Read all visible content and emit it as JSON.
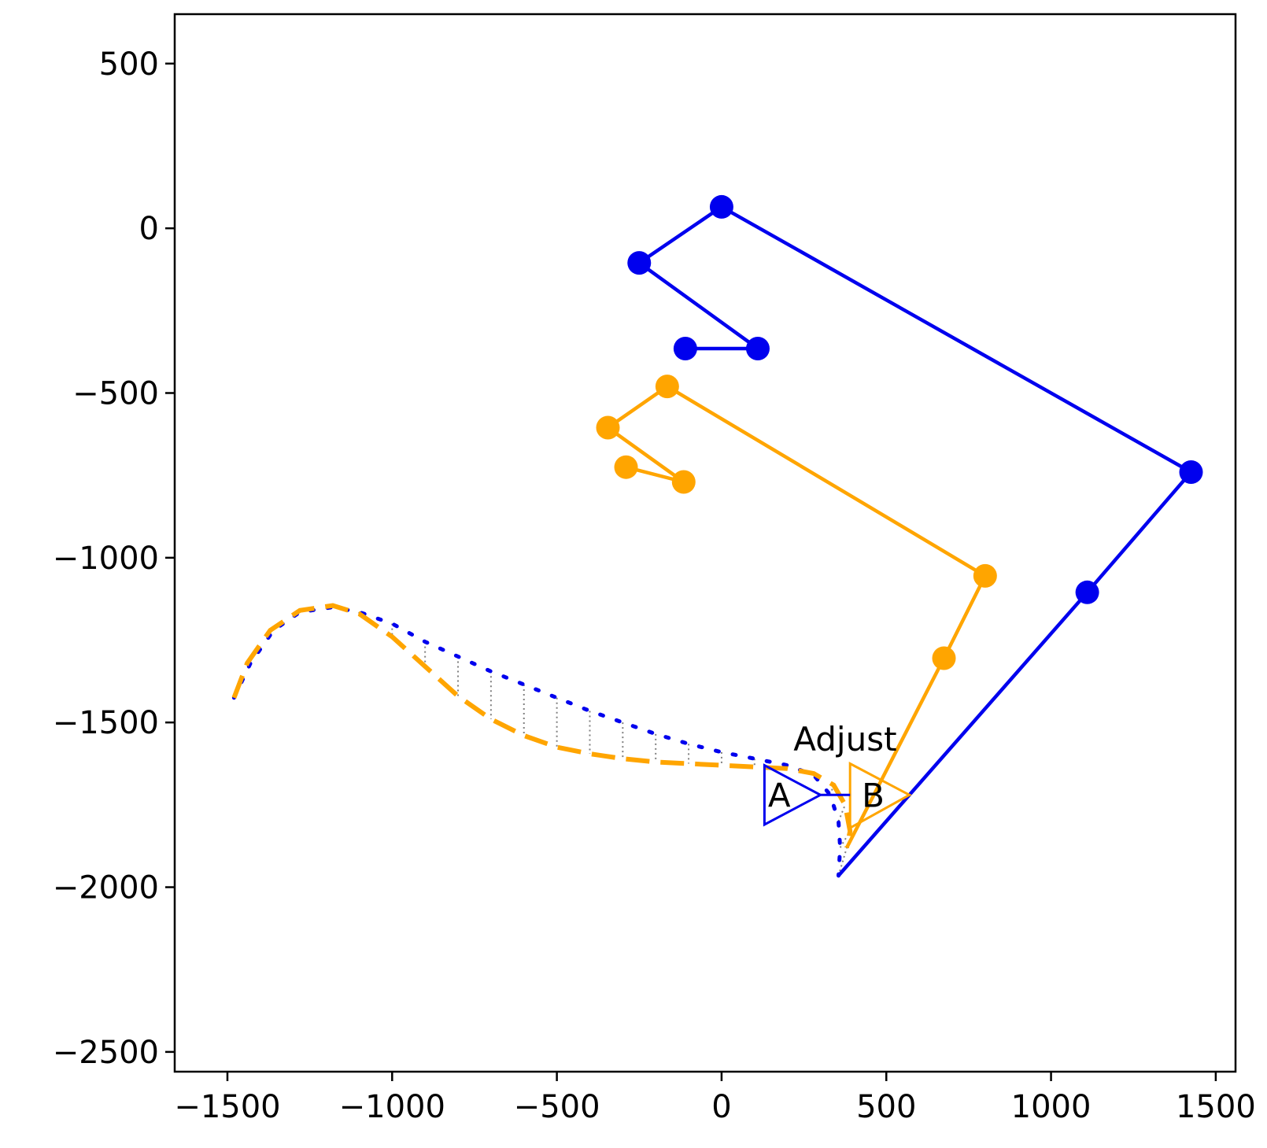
{
  "chart_data": {
    "type": "line",
    "title": "",
    "xlabel": "",
    "ylabel": "",
    "xlim": [
      -1660,
      1560
    ],
    "ylim": [
      -2560,
      650
    ],
    "xticks": [
      -1500,
      -1000,
      -500,
      0,
      500,
      1000,
      1500
    ],
    "xtick_labels": [
      "−1500",
      "−1000",
      "−500",
      "0",
      "500",
      "1000",
      "1500"
    ],
    "yticks": [
      500,
      0,
      -500,
      -1000,
      -1500,
      -2000,
      -2500
    ],
    "ytick_labels": [
      "500",
      "0",
      "−500",
      "−1000",
      "−1500",
      "−2000",
      "−2500"
    ],
    "grid": false,
    "colors": {
      "blue": "#0000ee",
      "orange": "#ffa500",
      "gray": "#808080"
    },
    "series": [
      {
        "color": "#0000ee",
        "style": "solid-markers",
        "points": [
          [
            -110,
            -365
          ],
          [
            110,
            -365
          ],
          [
            -250,
            -105
          ],
          [
            0,
            65
          ],
          [
            1425,
            -740
          ],
          [
            1110,
            -1105
          ],
          [
            355,
            -1965
          ]
        ]
      },
      {
        "color": "#ffa500",
        "style": "solid-markers",
        "points": [
          [
            -290,
            -725
          ],
          [
            -115,
            -770
          ],
          [
            -345,
            -605
          ],
          [
            -165,
            -480
          ],
          [
            800,
            -1055
          ],
          [
            675,
            -1305
          ],
          [
            380,
            -1880
          ]
        ]
      },
      {
        "color": "#0000ee",
        "style": "dotted",
        "points": [
          [
            -1480,
            -1425
          ],
          [
            -1430,
            -1320
          ],
          [
            -1360,
            -1220
          ],
          [
            -1280,
            -1165
          ],
          [
            -1180,
            -1150
          ],
          [
            -1100,
            -1165
          ],
          [
            -1000,
            -1200
          ],
          [
            -900,
            -1255
          ],
          [
            -800,
            -1300
          ],
          [
            -700,
            -1345
          ],
          [
            -600,
            -1385
          ],
          [
            -500,
            -1425
          ],
          [
            -400,
            -1465
          ],
          [
            -300,
            -1500
          ],
          [
            -200,
            -1535
          ],
          [
            -100,
            -1565
          ],
          [
            0,
            -1590
          ],
          [
            100,
            -1610
          ],
          [
            200,
            -1630
          ],
          [
            280,
            -1660
          ],
          [
            330,
            -1720
          ],
          [
            355,
            -1800
          ],
          [
            360,
            -1880
          ],
          [
            355,
            -1965
          ]
        ]
      },
      {
        "color": "#ffa500",
        "style": "dashed",
        "points": [
          [
            -1480,
            -1425
          ],
          [
            -1440,
            -1320
          ],
          [
            -1370,
            -1220
          ],
          [
            -1280,
            -1160
          ],
          [
            -1180,
            -1145
          ],
          [
            -1100,
            -1170
          ],
          [
            -1000,
            -1240
          ],
          [
            -900,
            -1330
          ],
          [
            -800,
            -1420
          ],
          [
            -700,
            -1490
          ],
          [
            -600,
            -1540
          ],
          [
            -500,
            -1575
          ],
          [
            -400,
            -1595
          ],
          [
            -300,
            -1610
          ],
          [
            -200,
            -1620
          ],
          [
            -100,
            -1625
          ],
          [
            0,
            -1630
          ],
          [
            100,
            -1635
          ],
          [
            200,
            -1640
          ],
          [
            280,
            -1655
          ],
          [
            340,
            -1690
          ],
          [
            375,
            -1750
          ],
          [
            390,
            -1830
          ],
          [
            380,
            -1880
          ]
        ]
      }
    ],
    "connectors": {
      "color": "#808080",
      "style": "dotted",
      "pairs_from": "dotted-blue",
      "pairs_to": "dashed-orange",
      "note": "dotted gray lines join corresponding points of the two curves"
    },
    "annotations": [
      {
        "text": "A",
        "x": 175,
        "y": -1720
      },
      {
        "text": "B",
        "x": 460,
        "y": -1720
      },
      {
        "text": "Adjust",
        "x": 375,
        "y": -1550
      }
    ],
    "markers_triangle": [
      {
        "label": "A",
        "color": "#0000ee",
        "tip": [
          300,
          -1720
        ],
        "base_top": [
          130,
          -1630
        ],
        "base_bottom": [
          130,
          -1810
        ]
      },
      {
        "label": "B",
        "color": "#ffa500",
        "tip": [
          570,
          -1720
        ],
        "base_top": [
          390,
          -1625
        ],
        "base_bottom": [
          390,
          -1820
        ]
      }
    ],
    "arrow": {
      "color": "#0000ee",
      "from": [
        300,
        -1720
      ],
      "to": [
        390,
        -1720
      ]
    }
  }
}
